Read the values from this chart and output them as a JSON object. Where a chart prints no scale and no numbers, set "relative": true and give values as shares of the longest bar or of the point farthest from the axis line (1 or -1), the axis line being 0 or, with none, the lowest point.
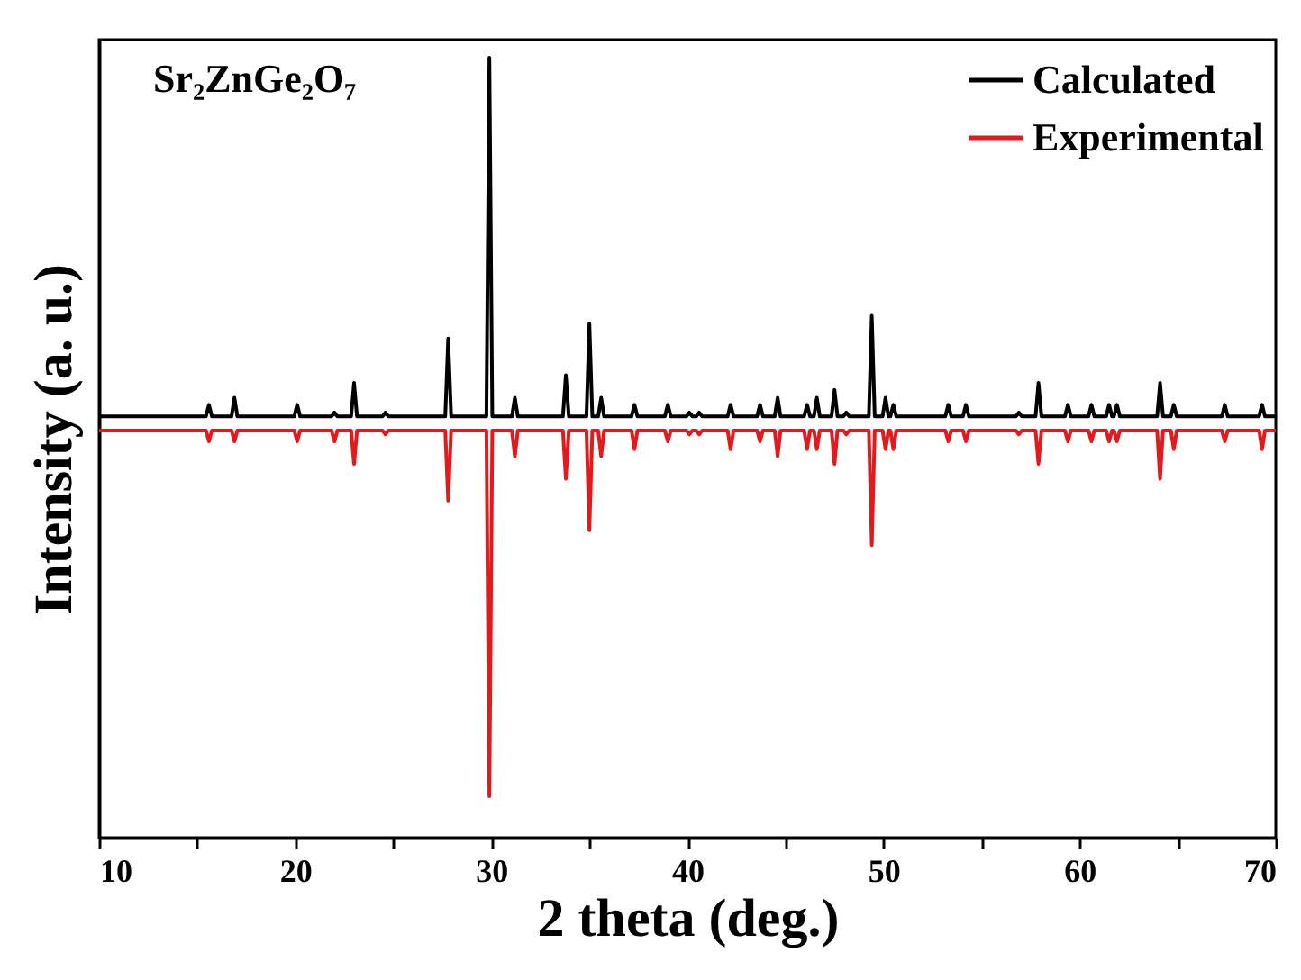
{
  "chart_data": {
    "type": "line",
    "xlabel": "2 theta (deg.)",
    "ylabel": "Intensity (a. u.)",
    "relative": true,
    "annotations": [
      "Sr₂ZnGe₂O₇"
    ],
    "xlim": [
      10,
      70
    ],
    "xticks": [
      10,
      {
        "value": 15,
        "label": null
      },
      20,
      {
        "value": 25,
        "label": null
      },
      30,
      {
        "value": 35,
        "label": null
      },
      40,
      {
        "value": 45,
        "label": null
      },
      50,
      {
        "value": 55,
        "label": null
      },
      60,
      {
        "value": 65,
        "label": null
      },
      70
    ],
    "legend": "top right",
    "grid": false,
    "line_style": "solid",
    "x": [
      10,
      15.45,
      15.6,
      15.75,
      16.75,
      16.9,
      17.05,
      19.95,
      20.1,
      20.25,
      21.85,
      22.0,
      22.15,
      22.85,
      23.0,
      23.15,
      24.45,
      24.6,
      24.75,
      27.65,
      27.8,
      27.95,
      29.75,
      29.9,
      30.05,
      31.05,
      31.2,
      31.35,
      33.65,
      33.8,
      33.95,
      34.85,
      35.0,
      35.15,
      35.45,
      35.6,
      35.75,
      37.15,
      37.3,
      37.45,
      38.85,
      39.0,
      39.15,
      39.95,
      40.1,
      40.25,
      40.45,
      40.6,
      40.75,
      42.05,
      42.2,
      42.35,
      43.55,
      43.7,
      43.85,
      44.45,
      44.6,
      44.75,
      45.95,
      46.1,
      46.25,
      46.45,
      46.6,
      46.75,
      47.35,
      47.5,
      47.65,
      47.95,
      48.1,
      48.25,
      49.25,
      49.4,
      49.55,
      49.95,
      50.1,
      50.25,
      50.35,
      50.5,
      50.65,
      53.15,
      53.3,
      53.45,
      54.05,
      54.2,
      54.35,
      56.75,
      56.9,
      57.05,
      57.75,
      57.9,
      58.05,
      59.25,
      59.4,
      59.55,
      60.45,
      60.6,
      60.75,
      61.35,
      61.5,
      61.65,
      61.75,
      61.9,
      62.05,
      63.95,
      64.1,
      64.25,
      64.65,
      64.8,
      64.95,
      67.25,
      67.4,
      67.55,
      69.15,
      69.3,
      69.45,
      70
    ],
    "series": [
      {
        "name": "Calculated",
        "color": "#000000",
        "values": [
          0.54,
          0.54,
          0.555,
          0.54,
          0.54,
          0.564,
          0.54,
          0.54,
          0.555,
          0.54,
          0.54,
          0.545,
          0.54,
          0.54,
          0.583,
          0.54,
          0.54,
          0.545,
          0.54,
          0.54,
          0.64,
          0.54,
          0.54,
          1,
          0.54,
          0.54,
          0.564,
          0.54,
          0.54,
          0.593,
          0.54,
          0.54,
          0.659,
          0.54,
          0.54,
          0.564,
          0.54,
          0.54,
          0.555,
          0.54,
          0.54,
          0.555,
          0.54,
          0.54,
          0.545,
          0.54,
          0.54,
          0.545,
          0.54,
          0.54,
          0.555,
          0.54,
          0.54,
          0.555,
          0.54,
          0.54,
          0.564,
          0.54,
          0.54,
          0.555,
          0.54,
          0.54,
          0.564,
          0.54,
          0.54,
          0.574,
          0.54,
          0.54,
          0.545,
          0.54,
          0.54,
          0.669,
          0.54,
          0.54,
          0.564,
          0.54,
          0.54,
          0.555,
          0.54,
          0.54,
          0.555,
          0.54,
          0.54,
          0.555,
          0.54,
          0.54,
          0.545,
          0.54,
          0.54,
          0.583,
          0.54,
          0.54,
          0.555,
          0.54,
          0.54,
          0.555,
          0.54,
          0.54,
          0.555,
          0.54,
          0.54,
          0.555,
          0.54,
          0.54,
          0.583,
          0.54,
          0.54,
          0.555,
          0.54,
          0.54,
          0.555,
          0.54,
          0.54,
          0.555,
          0.54,
          0.54
        ]
      },
      {
        "name": "Experimental",
        "color": "#e31a1c",
        "values": [
          0.522,
          0.522,
          0.508,
          0.522,
          0.522,
          0.508,
          0.522,
          0.522,
          0.508,
          0.522,
          0.522,
          0.508,
          0.522,
          0.522,
          0.479,
          0.522,
          0.522,
          0.517,
          0.522,
          0.522,
          0.432,
          0.522,
          0.522,
          0.053,
          0.522,
          0.522,
          0.489,
          0.522,
          0.522,
          0.46,
          0.522,
          0.522,
          0.394,
          0.522,
          0.522,
          0.489,
          0.522,
          0.522,
          0.498,
          0.522,
          0.522,
          0.508,
          0.522,
          0.522,
          0.517,
          0.522,
          0.522,
          0.517,
          0.522,
          0.522,
          0.498,
          0.522,
          0.522,
          0.508,
          0.522,
          0.522,
          0.489,
          0.522,
          0.522,
          0.498,
          0.522,
          0.522,
          0.498,
          0.522,
          0.522,
          0.479,
          0.522,
          0.522,
          0.517,
          0.522,
          0.522,
          0.375,
          0.522,
          0.522,
          0.498,
          0.522,
          0.522,
          0.498,
          0.522,
          0.522,
          0.508,
          0.522,
          0.522,
          0.508,
          0.522,
          0.522,
          0.517,
          0.522,
          0.522,
          0.479,
          0.522,
          0.522,
          0.508,
          0.522,
          0.522,
          0.508,
          0.522,
          0.522,
          0.508,
          0.522,
          0.522,
          0.508,
          0.522,
          0.522,
          0.46,
          0.522,
          0.522,
          0.498,
          0.522,
          0.522,
          0.508,
          0.522,
          0.522,
          0.498,
          0.522,
          0.522
        ]
      }
    ]
  }
}
